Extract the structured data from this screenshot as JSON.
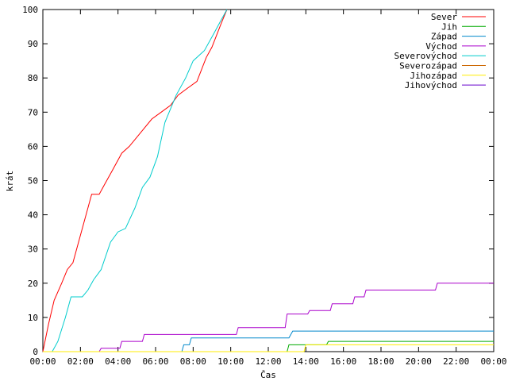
{
  "chart_data": {
    "type": "line",
    "title": "",
    "xlabel": "Čas",
    "ylabel": "krát",
    "xlim": [
      0,
      24
    ],
    "ylim": [
      0,
      100
    ],
    "x_ticks": [
      "00:00",
      "02:00",
      "04:00",
      "06:00",
      "08:00",
      "10:00",
      "12:00",
      "14:00",
      "16:00",
      "18:00",
      "20:00",
      "22:00",
      "00:00"
    ],
    "y_ticks": [
      "0",
      "10",
      "20",
      "30",
      "40",
      "50",
      "60",
      "70",
      "80",
      "90",
      "100"
    ],
    "legend_position": "top-right",
    "grid": false,
    "series": [
      {
        "name": "Sever",
        "color": "#ff0000",
        "points": [
          [
            0,
            0
          ],
          [
            0.3,
            8
          ],
          [
            0.6,
            15
          ],
          [
            1.0,
            20
          ],
          [
            1.3,
            24
          ],
          [
            1.6,
            26
          ],
          [
            2.0,
            34
          ],
          [
            2.3,
            40
          ],
          [
            2.6,
            46
          ],
          [
            3.0,
            46
          ],
          [
            3.3,
            49
          ],
          [
            3.7,
            53
          ],
          [
            4.2,
            58
          ],
          [
            4.6,
            60
          ],
          [
            5.2,
            64
          ],
          [
            5.8,
            68
          ],
          [
            6.3,
            70
          ],
          [
            6.8,
            72
          ],
          [
            7.2,
            75
          ],
          [
            7.7,
            77
          ],
          [
            8.2,
            79
          ],
          [
            8.7,
            86
          ],
          [
            9.0,
            89
          ],
          [
            9.5,
            96
          ],
          [
            9.8,
            100
          ]
        ]
      },
      {
        "name": "Jih",
        "color": "#00aa00",
        "points": [
          [
            0,
            0
          ],
          [
            13.0,
            0
          ],
          [
            13.1,
            2
          ],
          [
            15.1,
            2
          ],
          [
            15.2,
            3
          ],
          [
            24,
            3
          ]
        ]
      },
      {
        "name": "Západ",
        "color": "#0088cc",
        "points": [
          [
            0,
            0
          ],
          [
            7.4,
            0
          ],
          [
            7.5,
            2
          ],
          [
            7.8,
            2
          ],
          [
            7.9,
            4
          ],
          [
            13.1,
            4
          ],
          [
            13.2,
            5
          ],
          [
            13.3,
            6
          ],
          [
            24,
            6
          ]
        ]
      },
      {
        "name": "Východ",
        "color": "#aa00cc",
        "points": [
          [
            0,
            0
          ],
          [
            3.0,
            0
          ],
          [
            3.1,
            1
          ],
          [
            4.1,
            1
          ],
          [
            4.2,
            3
          ],
          [
            5.3,
            3
          ],
          [
            5.4,
            5
          ],
          [
            10.3,
            5
          ],
          [
            10.4,
            7
          ],
          [
            12.9,
            7
          ],
          [
            13.0,
            11
          ],
          [
            14.1,
            11
          ],
          [
            14.2,
            12
          ],
          [
            15.3,
            12
          ],
          [
            15.4,
            14
          ],
          [
            16.5,
            14
          ],
          [
            16.6,
            16
          ],
          [
            17.1,
            16
          ],
          [
            17.2,
            18
          ],
          [
            20.9,
            18
          ],
          [
            21.0,
            20
          ],
          [
            24,
            20
          ]
        ]
      },
      {
        "name": "Severovýchod",
        "color": "#00cccc",
        "points": [
          [
            0,
            0
          ],
          [
            0.5,
            0
          ],
          [
            0.8,
            3
          ],
          [
            1.2,
            10
          ],
          [
            1.5,
            16
          ],
          [
            2.1,
            16
          ],
          [
            2.4,
            18
          ],
          [
            2.7,
            21
          ],
          [
            3.1,
            24
          ],
          [
            3.6,
            32
          ],
          [
            4.0,
            35
          ],
          [
            4.4,
            36
          ],
          [
            4.9,
            42
          ],
          [
            5.3,
            48
          ],
          [
            5.7,
            51
          ],
          [
            6.1,
            57
          ],
          [
            6.5,
            67
          ],
          [
            7.1,
            75
          ],
          [
            7.6,
            80
          ],
          [
            8.0,
            85
          ],
          [
            8.6,
            88
          ],
          [
            9.1,
            93
          ],
          [
            9.5,
            97
          ],
          [
            9.8,
            100
          ]
        ]
      },
      {
        "name": "Severozápad",
        "color": "#cc6600",
        "points": []
      },
      {
        "name": "Jihozápad",
        "color": "#ffee00",
        "points": [
          [
            0,
            0
          ],
          [
            13.9,
            0
          ],
          [
            14.0,
            2
          ],
          [
            24,
            2
          ]
        ]
      },
      {
        "name": "Jihovýchod",
        "color": "#6600cc",
        "points": []
      }
    ]
  }
}
